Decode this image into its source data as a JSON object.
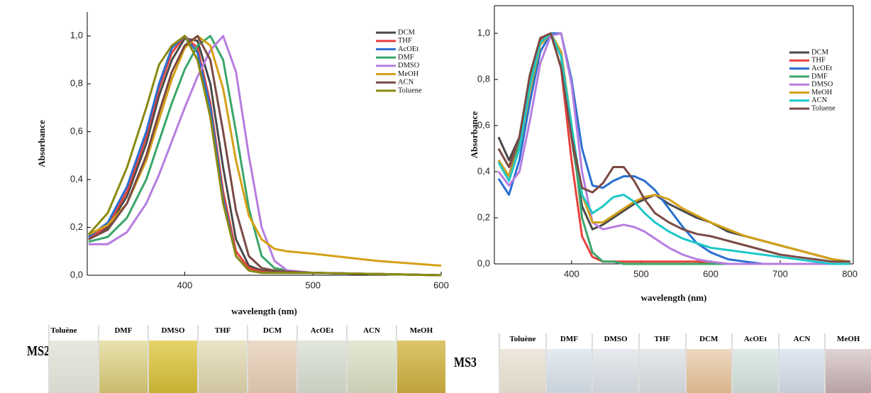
{
  "chart_data": [
    {
      "type": "line",
      "xlabel": "wavelength (nm)",
      "ylabel": "Absorbance",
      "x": [
        325,
        340,
        355,
        370,
        380,
        390,
        400,
        410,
        420,
        430,
        440,
        450,
        460,
        470,
        480,
        500,
        550,
        600
      ],
      "xlim": [
        324,
        600
      ],
      "xticks": [
        400,
        500,
        600
      ],
      "ylim": [
        0,
        1.1
      ],
      "yticks": [
        {
          "value": 0,
          "label": "0,0"
        },
        {
          "value": 0.2,
          "label": "0,2"
        },
        {
          "value": 0.4,
          "label": "0,4"
        },
        {
          "value": 0.6,
          "label": "0,6"
        },
        {
          "value": 0.8,
          "label": "0,8"
        },
        {
          "value": 1.0,
          "label": "1,0"
        }
      ],
      "legend": "upper right",
      "frame": "open",
      "series": [
        {
          "name": "DCM",
          "color": "#4a4a4a",
          "values": [
            0.15,
            0.2,
            0.33,
            0.55,
            0.75,
            0.9,
            0.99,
            0.98,
            0.8,
            0.45,
            0.15,
            0.04,
            0.02,
            0.015,
            0.01,
            0.01,
            0.005,
            0
          ]
        },
        {
          "name": "THF",
          "color": "#e8413c",
          "values": [
            0.15,
            0.21,
            0.35,
            0.58,
            0.78,
            0.93,
            1.0,
            0.95,
            0.72,
            0.35,
            0.1,
            0.03,
            0.015,
            0.01,
            0.01,
            0.01,
            0.005,
            0
          ]
        },
        {
          "name": "AcOEt",
          "color": "#2a6fd0",
          "values": [
            0.16,
            0.22,
            0.37,
            0.6,
            0.8,
            0.95,
            1.0,
            0.93,
            0.7,
            0.32,
            0.08,
            0.02,
            0.01,
            0.01,
            0.01,
            0.01,
            0.005,
            0
          ]
        },
        {
          "name": "DMF",
          "color": "#3aa66a",
          "values": [
            0.14,
            0.16,
            0.24,
            0.4,
            0.56,
            0.72,
            0.86,
            0.96,
            1.0,
            0.9,
            0.6,
            0.28,
            0.08,
            0.03,
            0.02,
            0.01,
            0.005,
            0
          ]
        },
        {
          "name": "DMSO",
          "color": "#b57de0",
          "values": [
            0.13,
            0.13,
            0.18,
            0.3,
            0.42,
            0.56,
            0.7,
            0.83,
            0.94,
            1.0,
            0.85,
            0.5,
            0.2,
            0.06,
            0.02,
            0.01,
            0.005,
            0
          ]
        },
        {
          "name": "MeOH",
          "color": "#d4a017",
          "values": [
            0.17,
            0.21,
            0.3,
            0.48,
            0.65,
            0.82,
            0.95,
            1.0,
            0.96,
            0.78,
            0.48,
            0.25,
            0.15,
            0.11,
            0.1,
            0.09,
            0.06,
            0.04
          ]
        },
        {
          "name": "ACN",
          "color": "#7b4a44",
          "values": [
            0.15,
            0.19,
            0.3,
            0.5,
            0.68,
            0.85,
            0.96,
            1.0,
            0.9,
            0.6,
            0.27,
            0.08,
            0.03,
            0.02,
            0.015,
            0.01,
            0.005,
            0
          ]
        },
        {
          "name": "Toluene",
          "color": "#8a8a10",
          "values": [
            0.17,
            0.26,
            0.45,
            0.7,
            0.88,
            0.96,
            1.0,
            0.9,
            0.66,
            0.3,
            0.08,
            0.02,
            0.01,
            0.01,
            0.01,
            0.01,
            0.005,
            0
          ]
        }
      ]
    },
    {
      "type": "line",
      "xlabel": "wavelength (nm)",
      "ylabel": "Absorbance",
      "x": [
        295,
        310,
        325,
        340,
        355,
        370,
        385,
        400,
        415,
        430,
        445,
        460,
        475,
        490,
        505,
        520,
        540,
        560,
        580,
        600,
        625,
        650,
        675,
        700,
        725,
        750,
        775,
        800
      ],
      "xlim": [
        289,
        805
      ],
      "xticks": [
        400,
        500,
        600,
        700,
        800
      ],
      "ylim": [
        0,
        1.12
      ],
      "yticks": [
        {
          "value": 0,
          "label": "0,0"
        },
        {
          "value": 0.2,
          "label": "0,2"
        },
        {
          "value": 0.4,
          "label": "0,4"
        },
        {
          "value": 0.6,
          "label": "0,6"
        },
        {
          "value": 0.8,
          "label": "0,8"
        },
        {
          "value": 1.0,
          "label": "1,0"
        }
      ],
      "legend": "upper right",
      "frame": "box",
      "series": [
        {
          "name": "DCM",
          "color": "#4a4a4a",
          "values": [
            0.55,
            0.45,
            0.55,
            0.8,
            0.97,
            1.0,
            0.9,
            0.55,
            0.25,
            0.15,
            0.17,
            0.2,
            0.23,
            0.26,
            0.28,
            0.3,
            0.26,
            0.23,
            0.2,
            0.18,
            0.14,
            0.12,
            0.1,
            0.08,
            0.06,
            0.04,
            0.02,
            0.01
          ]
        },
        {
          "name": "THF",
          "color": "#e8413c",
          "values": [
            0.45,
            0.38,
            0.55,
            0.8,
            0.97,
            1.0,
            0.85,
            0.45,
            0.12,
            0.03,
            0.01,
            0.01,
            0.01,
            0.01,
            0.01,
            0.01,
            0.01,
            0.01,
            0.01,
            0.005,
            0,
            0,
            0,
            0,
            0,
            0,
            0,
            0
          ]
        },
        {
          "name": "AcOEt",
          "color": "#2a6fd0",
          "values": [
            0.37,
            0.3,
            0.45,
            0.7,
            0.92,
            1.0,
            1.0,
            0.8,
            0.5,
            0.34,
            0.33,
            0.36,
            0.38,
            0.38,
            0.36,
            0.32,
            0.24,
            0.16,
            0.09,
            0.05,
            0.02,
            0.01,
            0,
            0,
            0,
            0,
            0,
            0
          ]
        },
        {
          "name": "DMF",
          "color": "#3aa66a",
          "values": [
            0.45,
            0.38,
            0.52,
            0.78,
            0.96,
            1.0,
            0.92,
            0.6,
            0.2,
            0.05,
            0.01,
            0.01,
            0,
            0,
            0,
            0,
            0,
            0,
            0,
            0,
            0,
            0,
            0,
            0,
            0,
            0,
            0,
            0
          ]
        },
        {
          "name": "DMSO",
          "color": "#b57de0",
          "values": [
            0.4,
            0.34,
            0.4,
            0.62,
            0.87,
            0.99,
            1.0,
            0.78,
            0.4,
            0.18,
            0.15,
            0.16,
            0.17,
            0.16,
            0.14,
            0.11,
            0.07,
            0.04,
            0.02,
            0.01,
            0,
            0,
            0,
            0,
            0,
            0,
            0,
            0
          ]
        },
        {
          "name": "MeOH",
          "color": "#d4a017",
          "values": [
            0.45,
            0.38,
            0.5,
            0.75,
            0.95,
            1.0,
            0.92,
            0.6,
            0.3,
            0.18,
            0.18,
            0.21,
            0.24,
            0.27,
            0.29,
            0.3,
            0.28,
            0.24,
            0.21,
            0.18,
            0.15,
            0.12,
            0.1,
            0.08,
            0.06,
            0.04,
            0.02,
            0.01
          ]
        },
        {
          "name": "ACN",
          "color": "#1cc8c8",
          "values": [
            0.44,
            0.36,
            0.5,
            0.77,
            0.96,
            1.0,
            0.9,
            0.6,
            0.3,
            0.22,
            0.25,
            0.29,
            0.3,
            0.27,
            0.22,
            0.18,
            0.14,
            0.11,
            0.09,
            0.07,
            0.06,
            0.05,
            0.04,
            0.03,
            0.02,
            0.01,
            0,
            0
          ]
        },
        {
          "name": "Toluene",
          "color": "#7b4a44",
          "values": [
            0.5,
            0.42,
            0.55,
            0.82,
            0.98,
            1.0,
            0.85,
            0.55,
            0.33,
            0.31,
            0.35,
            0.42,
            0.42,
            0.36,
            0.28,
            0.22,
            0.18,
            0.15,
            0.13,
            0.12,
            0.1,
            0.08,
            0.06,
            0.04,
            0.03,
            0.02,
            0.01,
            0.01
          ]
        }
      ]
    }
  ],
  "photos": [
    {
      "label": "MS2",
      "vials": [
        "Toluène",
        "DMF",
        "DMSO",
        "THF",
        "DCM",
        "AcOEt",
        "ACN",
        "MeOH"
      ]
    },
    {
      "label": "MS3",
      "vials": [
        "Toluène",
        "DMF",
        "DMSO",
        "THF",
        "DCM",
        "AcOEt",
        "ACN",
        "MeOH"
      ]
    }
  ]
}
